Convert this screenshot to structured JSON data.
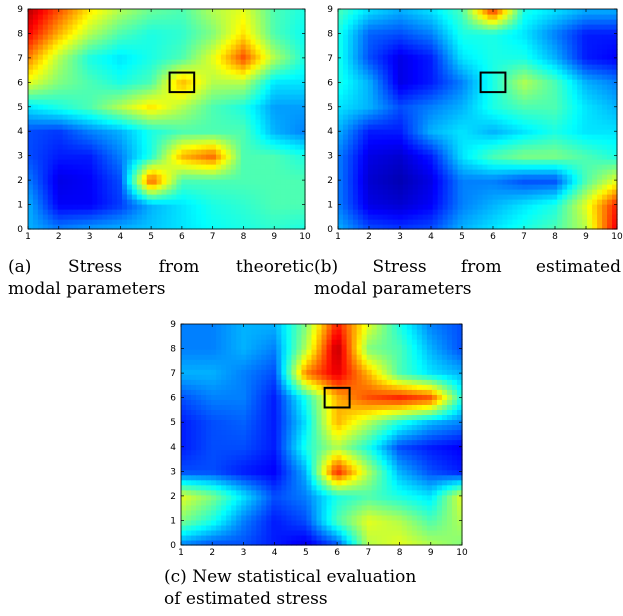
{
  "colormap": "jet",
  "box_color": "#000000",
  "chart_data": [
    {
      "id": "a",
      "type": "heatmap",
      "title": "",
      "xlabel": "",
      "ylabel": "",
      "xlim": [
        1,
        10
      ],
      "ylim": [
        0,
        9
      ],
      "x_ticks": [
        "1",
        "2",
        "3",
        "4",
        "5",
        "6",
        "7",
        "8",
        "9",
        "10"
      ],
      "y_ticks": [
        "0",
        "1",
        "2",
        "3",
        "4",
        "5",
        "6",
        "7",
        "8",
        "9"
      ],
      "highlight_box": {
        "x": [
          5.6,
          6.4
        ],
        "y": [
          5.6,
          6.4
        ]
      },
      "grid_x": [
        1,
        2,
        3,
        4,
        5,
        6,
        7,
        8,
        9,
        10
      ],
      "grid_y": [
        0,
        1,
        2,
        3,
        4,
        5,
        6,
        7,
        8,
        9
      ],
      "values": [
        [
          0.3,
          0.25,
          0.28,
          0.3,
          0.32,
          0.35,
          0.38,
          0.4,
          0.42,
          0.4
        ],
        [
          0.3,
          0.12,
          0.12,
          0.18,
          0.3,
          0.35,
          0.4,
          0.42,
          0.45,
          0.45
        ],
        [
          0.25,
          0.1,
          0.12,
          0.2,
          0.8,
          0.45,
          0.45,
          0.45,
          0.45,
          0.45
        ],
        [
          0.2,
          0.15,
          0.15,
          0.25,
          0.4,
          0.7,
          0.78,
          0.45,
          0.45,
          0.4
        ],
        [
          0.2,
          0.18,
          0.25,
          0.3,
          0.4,
          0.45,
          0.45,
          0.45,
          0.3,
          0.25
        ],
        [
          0.35,
          0.4,
          0.45,
          0.55,
          0.65,
          0.55,
          0.45,
          0.4,
          0.28,
          0.28
        ],
        [
          0.6,
          0.5,
          0.45,
          0.4,
          0.45,
          0.7,
          0.55,
          0.55,
          0.35,
          0.35
        ],
        [
          0.75,
          0.55,
          0.4,
          0.35,
          0.4,
          0.45,
          0.6,
          0.8,
          0.55,
          0.4
        ],
        [
          0.88,
          0.7,
          0.55,
          0.45,
          0.4,
          0.42,
          0.5,
          0.65,
          0.45,
          0.38
        ],
        [
          0.95,
          0.8,
          0.65,
          0.55,
          0.48,
          0.45,
          0.55,
          0.6,
          0.45,
          0.4
        ]
      ],
      "caption_line1": [
        "(a)",
        "Stress",
        "from",
        "theoretic"
      ],
      "caption_line2": "modal parameters"
    },
    {
      "id": "b",
      "type": "heatmap",
      "title": "",
      "xlabel": "",
      "ylabel": "",
      "xlim": [
        1,
        10
      ],
      "ylim": [
        0,
        9
      ],
      "x_ticks": [
        "1",
        "2",
        "3",
        "4",
        "5",
        "6",
        "7",
        "8",
        "9",
        "10"
      ],
      "y_ticks": [
        "0",
        "1",
        "2",
        "3",
        "4",
        "5",
        "6",
        "7",
        "8",
        "9"
      ],
      "highlight_box": {
        "x": [
          5.6,
          6.4
        ],
        "y": [
          5.6,
          6.4
        ]
      },
      "grid_x": [
        1,
        2,
        3,
        4,
        5,
        6,
        7,
        8,
        9,
        10
      ],
      "grid_y": [
        0,
        1,
        2,
        3,
        4,
        5,
        6,
        7,
        8,
        9
      ],
      "values": [
        [
          0.3,
          0.2,
          0.18,
          0.2,
          0.3,
          0.35,
          0.4,
          0.45,
          0.55,
          0.9
        ],
        [
          0.25,
          0.1,
          0.08,
          0.12,
          0.25,
          0.3,
          0.35,
          0.4,
          0.6,
          0.85
        ],
        [
          0.25,
          0.08,
          0.05,
          0.1,
          0.25,
          0.25,
          0.2,
          0.2,
          0.45,
          0.6
        ],
        [
          0.25,
          0.1,
          0.08,
          0.15,
          0.35,
          0.45,
          0.5,
          0.5,
          0.45,
          0.4
        ],
        [
          0.3,
          0.15,
          0.15,
          0.3,
          0.35,
          0.3,
          0.35,
          0.4,
          0.35,
          0.35
        ],
        [
          0.35,
          0.3,
          0.2,
          0.25,
          0.3,
          0.4,
          0.45,
          0.45,
          0.35,
          0.3
        ],
        [
          0.4,
          0.3,
          0.1,
          0.15,
          0.25,
          0.4,
          0.55,
          0.45,
          0.3,
          0.25
        ],
        [
          0.4,
          0.2,
          0.1,
          0.15,
          0.35,
          0.4,
          0.4,
          0.3,
          0.15,
          0.12
        ],
        [
          0.4,
          0.22,
          0.2,
          0.25,
          0.4,
          0.4,
          0.35,
          0.25,
          0.15,
          0.15
        ],
        [
          0.45,
          0.35,
          0.3,
          0.35,
          0.45,
          0.85,
          0.4,
          0.35,
          0.3,
          0.3
        ]
      ],
      "caption_line1": [
        "(b)",
        "Stress",
        "from",
        "estimated"
      ],
      "caption_line2": "modal parameters"
    },
    {
      "id": "c",
      "type": "heatmap",
      "title": "",
      "xlabel": "",
      "ylabel": "",
      "xlim": [
        1,
        10
      ],
      "ylim": [
        0,
        9
      ],
      "x_ticks": [
        "1",
        "2",
        "3",
        "4",
        "5",
        "6",
        "7",
        "8",
        "9",
        "10"
      ],
      "y_ticks": [
        "0",
        "1",
        "2",
        "3",
        "4",
        "5",
        "6",
        "7",
        "8",
        "9"
      ],
      "highlight_box": {
        "x": [
          5.6,
          6.4
        ],
        "y": [
          5.6,
          6.4
        ]
      },
      "grid_x": [
        1,
        2,
        3,
        4,
        5,
        6,
        7,
        8,
        9,
        10
      ],
      "grid_y": [
        0,
        1,
        2,
        3,
        4,
        5,
        6,
        7,
        8,
        9
      ],
      "values": [
        [
          0.25,
          0.2,
          0.2,
          0.15,
          0.1,
          0.2,
          0.55,
          0.6,
          0.55,
          0.5
        ],
        [
          0.5,
          0.4,
          0.25,
          0.15,
          0.2,
          0.45,
          0.6,
          0.55,
          0.45,
          0.55
        ],
        [
          0.6,
          0.5,
          0.35,
          0.2,
          0.25,
          0.4,
          0.45,
          0.4,
          0.35,
          0.6
        ],
        [
          0.2,
          0.2,
          0.15,
          0.12,
          0.3,
          0.85,
          0.55,
          0.3,
          0.2,
          0.15
        ],
        [
          0.15,
          0.2,
          0.2,
          0.15,
          0.4,
          0.55,
          0.4,
          0.2,
          0.15,
          0.12
        ],
        [
          0.15,
          0.2,
          0.22,
          0.15,
          0.35,
          0.7,
          0.55,
          0.4,
          0.3,
          0.25
        ],
        [
          0.2,
          0.25,
          0.25,
          0.15,
          0.4,
          0.7,
          0.8,
          0.85,
          0.8,
          0.4
        ],
        [
          0.3,
          0.3,
          0.25,
          0.2,
          0.75,
          0.9,
          0.7,
          0.45,
          0.35,
          0.3
        ],
        [
          0.25,
          0.25,
          0.3,
          0.25,
          0.55,
          0.95,
          0.5,
          0.45,
          0.3,
          0.2
        ],
        [
          0.25,
          0.25,
          0.3,
          0.3,
          0.5,
          0.85,
          0.6,
          0.4,
          0.25,
          0.2
        ]
      ],
      "caption_lines": [
        "(c) New statistical evaluation",
        "of estimated stress"
      ]
    }
  ]
}
